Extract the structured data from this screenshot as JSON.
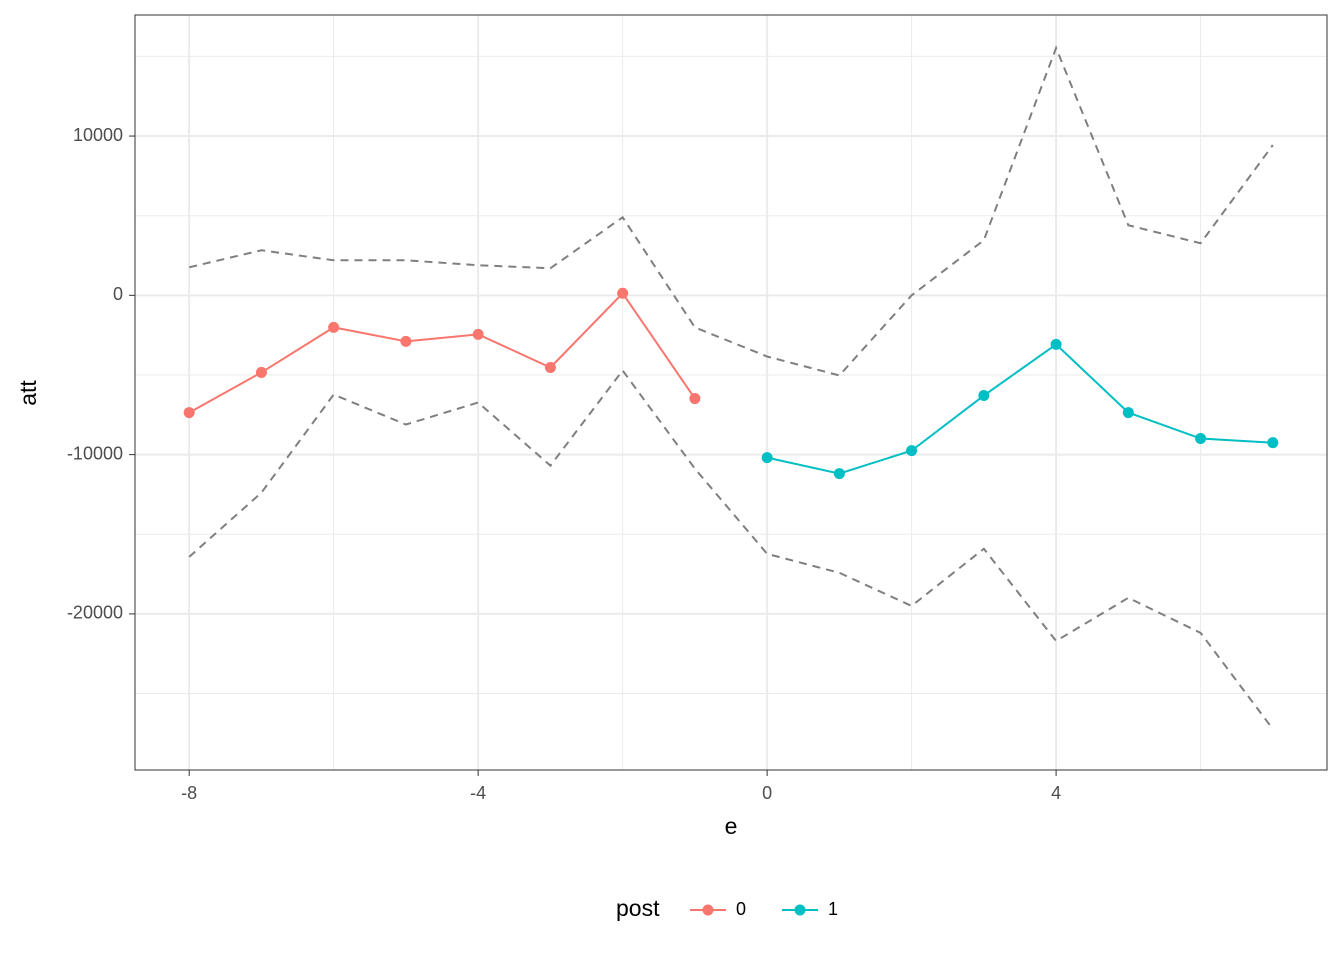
{
  "chart_data": {
    "type": "line",
    "x_label": "e",
    "y_label": "att",
    "legend_title": "post",
    "legend_position": "bottom",
    "x": [
      -8,
      -7,
      -6,
      -5,
      -4,
      -3,
      -2,
      -1,
      0,
      1,
      2,
      3,
      4,
      5,
      6,
      7
    ],
    "series": [
      {
        "name": "0",
        "color": "#F8766D",
        "values": [
          -7360,
          -4840,
          -2010,
          -2890,
          -2450,
          -4530,
          130,
          -6480,
          null,
          null,
          null,
          null,
          null,
          null,
          null,
          null
        ]
      },
      {
        "name": "1",
        "color": "#00BFC4",
        "values": [
          null,
          null,
          null,
          null,
          null,
          null,
          null,
          null,
          -10190,
          -11190,
          -9750,
          -6290,
          -3080,
          -7360,
          -8990,
          -9250
        ]
      }
    ],
    "bands": {
      "color": "#7f7f7f",
      "upper": [
        1760,
        2830,
        2200,
        2200,
        1890,
        1700,
        4900,
        -2010,
        -3840,
        -5030,
        0,
        3460,
        15530,
        4400,
        3270,
        9430
      ],
      "lower": [
        -16420,
        -12390,
        -6230,
        -8110,
        -6730,
        -10690,
        -4720,
        -10880,
        -16230,
        -17420,
        -19500,
        -15910,
        -21700,
        -18990,
        -21190,
        -27230
      ]
    },
    "xlim": [
      -8.75,
      7.75
    ],
    "ylim": [
      -29800,
      17600
    ],
    "xticks": [
      -8,
      -4,
      0,
      4
    ],
    "yticks": [
      -20000,
      -10000,
      0,
      10000
    ],
    "x_minor_grid": [
      -6,
      -2,
      2,
      6
    ],
    "y_minor_grid": [
      -25000,
      -15000,
      -5000,
      5000,
      15000
    ],
    "grid": true
  }
}
